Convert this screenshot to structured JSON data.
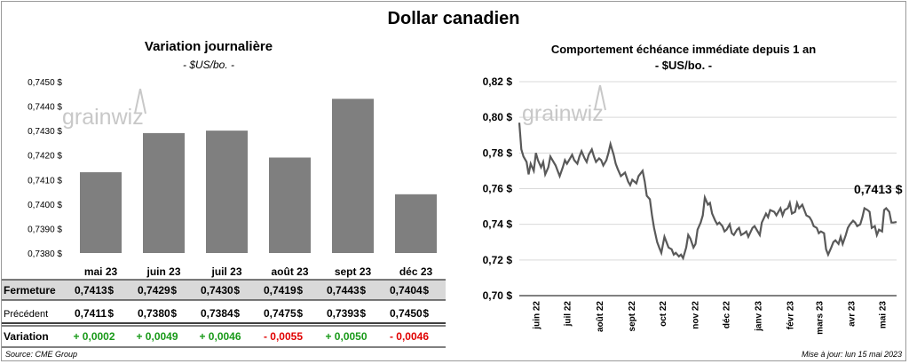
{
  "header": {
    "title": "Dollar canadien"
  },
  "left_chart": {
    "title": "Variation  journalière",
    "subtitle": "- $US/bo. -",
    "watermark": "grainwiz"
  },
  "right_chart": {
    "title": "Comportement échéance immédiate depuis 1 an",
    "subtitle": "- $US/bo. -",
    "last_label": "0,7413 $",
    "watermark": "grainwiz"
  },
  "table": {
    "row_labels": {
      "close": "Fermeture",
      "previous": "Précédent",
      "change": "Variation"
    },
    "currency_symbol": "$",
    "close": [
      "0,7413",
      "0,7429",
      "0,7430",
      "0,7419",
      "0,7443",
      "0,7404"
    ],
    "previous": [
      "0,7411",
      "0,7380",
      "0,7384",
      "0,7475",
      "0,7393",
      "0,7450"
    ],
    "change": [
      "+ 0,0002",
      "+ 0,0049",
      "+ 0,0046",
      "- 0,0055",
      "+ 0,0050",
      "- 0,0046"
    ]
  },
  "footer": {
    "source": "Source: CME Group",
    "updated": "Mise à jour: lun 15 mai 2023"
  },
  "colors": {
    "bar": "#7f7f7f",
    "line": "#595959",
    "grid": "#d9d9d9",
    "positive": "#1a9a1a",
    "negative": "#e00000",
    "close_row_bg": "#d9d9d9"
  },
  "chart_data": [
    {
      "type": "bar",
      "categories": [
        "mai 23",
        "juin 23",
        "juil 23",
        "août 23",
        "sept 23",
        "déc 23"
      ],
      "values": [
        0.7413,
        0.7429,
        0.743,
        0.7419,
        0.7443,
        0.7404
      ],
      "ylim": [
        0.738,
        0.745
      ],
      "yticks": [
        "0,7380 $",
        "0,7390 $",
        "0,7400 $",
        "0,7410 $",
        "0,7420 $",
        "0,7430 $",
        "0,7440 $",
        "0,7450 $"
      ],
      "grid": false
    },
    {
      "type": "line",
      "ylim": [
        0.7,
        0.82
      ],
      "yticks": [
        "0,70 $",
        "0,72 $",
        "0,74 $",
        "0,76 $",
        "0,78 $",
        "0,80 $",
        "0,82 $"
      ],
      "xticks": [
        "juin 22",
        "juil 22",
        "août 22",
        "sept 22",
        "oct 22",
        "nov 22",
        "déc 22",
        "janv 23",
        "févr 23",
        "mars 23",
        "avr 23",
        "mai 23"
      ],
      "grid": true,
      "series": [
        {
          "points": [
            [
              "2022-05-16",
              0.797
            ],
            [
              "2022-05-18",
              0.782
            ],
            [
              "2022-05-20",
              0.778
            ],
            [
              "2022-05-23",
              0.775
            ],
            [
              "2022-05-25",
              0.768
            ],
            [
              "2022-05-27",
              0.774
            ],
            [
              "2022-05-30",
              0.77
            ],
            [
              "2022-06-01",
              0.78
            ],
            [
              "2022-06-03",
              0.776
            ],
            [
              "2022-06-06",
              0.772
            ],
            [
              "2022-06-08",
              0.775
            ],
            [
              "2022-06-10",
              0.768
            ],
            [
              "2022-06-13",
              0.772
            ],
            [
              "2022-06-15",
              0.778
            ],
            [
              "2022-06-17",
              0.776
            ],
            [
              "2022-06-20",
              0.773
            ],
            [
              "2022-06-22",
              0.77
            ],
            [
              "2022-06-24",
              0.767
            ],
            [
              "2022-06-27",
              0.772
            ],
            [
              "2022-06-29",
              0.776
            ],
            [
              "2022-07-01",
              0.774
            ],
            [
              "2022-07-04",
              0.777
            ],
            [
              "2022-07-06",
              0.779
            ],
            [
              "2022-07-08",
              0.776
            ],
            [
              "2022-07-11",
              0.774
            ],
            [
              "2022-07-13",
              0.778
            ],
            [
              "2022-07-15",
              0.781
            ],
            [
              "2022-07-18",
              0.777
            ],
            [
              "2022-07-20",
              0.775
            ],
            [
              "2022-07-22",
              0.779
            ],
            [
              "2022-07-25",
              0.782
            ],
            [
              "2022-07-27",
              0.778
            ],
            [
              "2022-07-29",
              0.775
            ],
            [
              "2022-08-01",
              0.777
            ],
            [
              "2022-08-03",
              0.776
            ],
            [
              "2022-08-05",
              0.773
            ],
            [
              "2022-08-08",
              0.776
            ],
            [
              "2022-08-10",
              0.78
            ],
            [
              "2022-08-12",
              0.785
            ],
            [
              "2022-08-15",
              0.779
            ],
            [
              "2022-08-17",
              0.774
            ],
            [
              "2022-08-19",
              0.771
            ],
            [
              "2022-08-22",
              0.767
            ],
            [
              "2022-08-24",
              0.768
            ],
            [
              "2022-08-26",
              0.769
            ],
            [
              "2022-08-29",
              0.764
            ],
            [
              "2022-08-31",
              0.762
            ],
            [
              "2022-09-02",
              0.765
            ],
            [
              "2022-09-06",
              0.763
            ],
            [
              "2022-09-08",
              0.767
            ],
            [
              "2022-09-12",
              0.77
            ],
            [
              "2022-09-14",
              0.764
            ],
            [
              "2022-09-16",
              0.756
            ],
            [
              "2022-09-19",
              0.754
            ],
            [
              "2022-09-21",
              0.745
            ],
            [
              "2022-09-23",
              0.738
            ],
            [
              "2022-09-26",
              0.73
            ],
            [
              "2022-09-28",
              0.727
            ],
            [
              "2022-09-30",
              0.724
            ],
            [
              "2022-10-03",
              0.733
            ],
            [
              "2022-10-05",
              0.73
            ],
            [
              "2022-10-07",
              0.727
            ],
            [
              "2022-10-10",
              0.726
            ],
            [
              "2022-10-12",
              0.723
            ],
            [
              "2022-10-14",
              0.724
            ],
            [
              "2022-10-17",
              0.722
            ],
            [
              "2022-10-19",
              0.723
            ],
            [
              "2022-10-21",
              0.721
            ],
            [
              "2022-10-24",
              0.727
            ],
            [
              "2022-10-26",
              0.734
            ],
            [
              "2022-10-28",
              0.732
            ],
            [
              "2022-10-31",
              0.727
            ],
            [
              "2022-11-02",
              0.729
            ],
            [
              "2022-11-04",
              0.737
            ],
            [
              "2022-11-07",
              0.741
            ],
            [
              "2022-11-09",
              0.745
            ],
            [
              "2022-11-11",
              0.755
            ],
            [
              "2022-11-14",
              0.751
            ],
            [
              "2022-11-16",
              0.752
            ],
            [
              "2022-11-18",
              0.746
            ],
            [
              "2022-11-21",
              0.742
            ],
            [
              "2022-11-23",
              0.74
            ],
            [
              "2022-11-25",
              0.741
            ],
            [
              "2022-11-28",
              0.739
            ],
            [
              "2022-11-30",
              0.736
            ],
            [
              "2022-12-02",
              0.737
            ],
            [
              "2022-12-05",
              0.74
            ],
            [
              "2022-12-07",
              0.735
            ],
            [
              "2022-12-09",
              0.734
            ],
            [
              "2022-12-12",
              0.737
            ],
            [
              "2022-12-14",
              0.738
            ],
            [
              "2022-12-16",
              0.734
            ],
            [
              "2022-12-19",
              0.735
            ],
            [
              "2022-12-21",
              0.736
            ],
            [
              "2022-12-23",
              0.733
            ],
            [
              "2022-12-27",
              0.738
            ],
            [
              "2022-12-29",
              0.739
            ],
            [
              "2023-01-03",
              0.734
            ],
            [
              "2023-01-05",
              0.741
            ],
            [
              "2023-01-09",
              0.746
            ],
            [
              "2023-01-11",
              0.744
            ],
            [
              "2023-01-13",
              0.748
            ],
            [
              "2023-01-17",
              0.747
            ],
            [
              "2023-01-19",
              0.745
            ],
            [
              "2023-01-23",
              0.749
            ],
            [
              "2023-01-25",
              0.745
            ],
            [
              "2023-01-27",
              0.748
            ],
            [
              "2023-01-30",
              0.749
            ],
            [
              "2023-02-01",
              0.752
            ],
            [
              "2023-02-03",
              0.746
            ],
            [
              "2023-02-06",
              0.747
            ],
            [
              "2023-02-08",
              0.752
            ],
            [
              "2023-02-10",
              0.749
            ],
            [
              "2023-02-13",
              0.751
            ],
            [
              "2023-02-15",
              0.748
            ],
            [
              "2023-02-17",
              0.745
            ],
            [
              "2023-02-20",
              0.744
            ],
            [
              "2023-02-22",
              0.742
            ],
            [
              "2023-02-24",
              0.739
            ],
            [
              "2023-02-27",
              0.738
            ],
            [
              "2023-03-01",
              0.735
            ],
            [
              "2023-03-03",
              0.736
            ],
            [
              "2023-03-06",
              0.735
            ],
            [
              "2023-03-08",
              0.726
            ],
            [
              "2023-03-10",
              0.723
            ],
            [
              "2023-03-13",
              0.727
            ],
            [
              "2023-03-15",
              0.73
            ],
            [
              "2023-03-17",
              0.731
            ],
            [
              "2023-03-20",
              0.729
            ],
            [
              "2023-03-22",
              0.733
            ],
            [
              "2023-03-24",
              0.729
            ],
            [
              "2023-03-27",
              0.734
            ],
            [
              "2023-03-29",
              0.738
            ],
            [
              "2023-03-31",
              0.74
            ],
            [
              "2023-04-03",
              0.742
            ],
            [
              "2023-04-05",
              0.741
            ],
            [
              "2023-04-07",
              0.739
            ],
            [
              "2023-04-10",
              0.74
            ],
            [
              "2023-04-12",
              0.744
            ],
            [
              "2023-04-14",
              0.749
            ],
            [
              "2023-04-17",
              0.748
            ],
            [
              "2023-04-19",
              0.747
            ],
            [
              "2023-04-21",
              0.738
            ],
            [
              "2023-04-24",
              0.739
            ],
            [
              "2023-04-26",
              0.734
            ],
            [
              "2023-04-28",
              0.737
            ],
            [
              "2023-05-01",
              0.736
            ],
            [
              "2023-05-03",
              0.748
            ],
            [
              "2023-05-05",
              0.749
            ],
            [
              "2023-05-08",
              0.747
            ],
            [
              "2023-05-10",
              0.741
            ],
            [
              "2023-05-12",
              0.741
            ],
            [
              "2023-05-15",
              0.7413
            ]
          ]
        }
      ]
    }
  ]
}
